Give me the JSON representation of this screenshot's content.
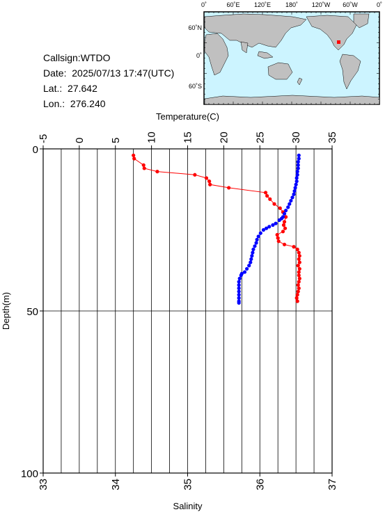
{
  "station": {
    "callsign_label": "Callsign:",
    "callsign": "WTDO",
    "date_label": "Date:",
    "date": "2025/07/13 17:47(UTC)",
    "lat_label": "Lat.:",
    "lat": "27.642",
    "lon_label": "Lon.:",
    "lon": "276.240"
  },
  "map": {
    "top_labels": [
      "0˚",
      "60˚E",
      "120˚E",
      "180˚",
      "120˚W",
      "60˚W",
      "0˚"
    ],
    "side_labels": [
      "60˚N",
      "0˚",
      "60˚S"
    ],
    "ocean_color": "#ccf4ff",
    "land_color": "#c0c0c0",
    "marker_color": "#ff0000"
  },
  "chart_data": {
    "type": "scatter",
    "temperature_axis": {
      "title": "Temperature(C)",
      "range": [
        -5,
        35
      ],
      "ticks": [
        "-5",
        "0",
        "5",
        "10",
        "15",
        "20",
        "25",
        "30",
        "35"
      ]
    },
    "salinity_axis": {
      "title": "Salinity",
      "range": [
        33,
        37
      ],
      "ticks": [
        "33",
        "34",
        "35",
        "36",
        "37"
      ]
    },
    "depth_axis": {
      "title": "Depth(m)",
      "range": [
        0,
        100
      ],
      "ticks": [
        "0",
        "50",
        "100"
      ],
      "inverted": true
    },
    "grid": true,
    "series": [
      {
        "quantity": "temperature",
        "color": "#ff0000",
        "connected": true,
        "points": [
          [
            7.5,
            2
          ],
          [
            7.6,
            3
          ],
          [
            8.9,
            5
          ],
          [
            9.0,
            6
          ],
          [
            10.8,
            7
          ],
          [
            16.0,
            8
          ],
          [
            17.6,
            9
          ],
          [
            18.0,
            10
          ],
          [
            18.1,
            11
          ],
          [
            20.7,
            12
          ],
          [
            25.8,
            13.5
          ],
          [
            26.0,
            14.5
          ],
          [
            26.4,
            15.5
          ],
          [
            27.0,
            17
          ],
          [
            27.8,
            18.3
          ],
          [
            28.2,
            19.5
          ],
          [
            28.6,
            21
          ],
          [
            28.4,
            22.5
          ],
          [
            28.3,
            23.5
          ],
          [
            28.5,
            24.5
          ],
          [
            28.2,
            25.5
          ],
          [
            27.4,
            26.5
          ],
          [
            27.5,
            27.5
          ],
          [
            27.6,
            28.5
          ],
          [
            28.4,
            29.5
          ],
          [
            29.7,
            30.2
          ],
          [
            30.2,
            31
          ],
          [
            30.4,
            32
          ],
          [
            30.5,
            33
          ],
          [
            30.4,
            34
          ],
          [
            30.5,
            35
          ],
          [
            30.3,
            36
          ],
          [
            30.5,
            37
          ],
          [
            30.4,
            38
          ],
          [
            30.4,
            39
          ],
          [
            30.5,
            40
          ],
          [
            30.4,
            41
          ],
          [
            30.3,
            42
          ],
          [
            30.4,
            43
          ],
          [
            30.3,
            44
          ],
          [
            30.2,
            45
          ],
          [
            30.1,
            46
          ],
          [
            30.2,
            47
          ]
        ]
      },
      {
        "quantity": "salinity",
        "color": "#0000ff",
        "connected": false,
        "points": [
          [
            36.54,
            2
          ],
          [
            36.54,
            3
          ],
          [
            36.53,
            4
          ],
          [
            36.53,
            5
          ],
          [
            36.53,
            6
          ],
          [
            36.52,
            7
          ],
          [
            36.52,
            8
          ],
          [
            36.51,
            9
          ],
          [
            36.51,
            10
          ],
          [
            36.5,
            11
          ],
          [
            36.49,
            12
          ],
          [
            36.48,
            13
          ],
          [
            36.47,
            14
          ],
          [
            36.45,
            15
          ],
          [
            36.43,
            16
          ],
          [
            36.41,
            17
          ],
          [
            36.39,
            18
          ],
          [
            36.36,
            19
          ],
          [
            36.34,
            20
          ],
          [
            36.32,
            21
          ],
          [
            36.3,
            21.5
          ],
          [
            36.27,
            22
          ],
          [
            36.22,
            23
          ],
          [
            36.18,
            23.5
          ],
          [
            36.13,
            24
          ],
          [
            36.09,
            24.5
          ],
          [
            36.05,
            25
          ],
          [
            36.01,
            26
          ],
          [
            35.98,
            27
          ],
          [
            35.96,
            28
          ],
          [
            35.95,
            29
          ],
          [
            35.93,
            30
          ],
          [
            35.91,
            31
          ],
          [
            35.9,
            32
          ],
          [
            35.89,
            33
          ],
          [
            35.88,
            34
          ],
          [
            35.87,
            35
          ],
          [
            35.85,
            36
          ],
          [
            35.82,
            37
          ],
          [
            35.79,
            38
          ],
          [
            35.75,
            38.5
          ],
          [
            35.74,
            39
          ],
          [
            35.72,
            40
          ],
          [
            35.71,
            41
          ],
          [
            35.71,
            42
          ],
          [
            35.71,
            43
          ],
          [
            35.71,
            44
          ],
          [
            35.71,
            45
          ],
          [
            35.71,
            46
          ],
          [
            35.71,
            47
          ],
          [
            35.71,
            47.5
          ]
        ]
      }
    ]
  }
}
